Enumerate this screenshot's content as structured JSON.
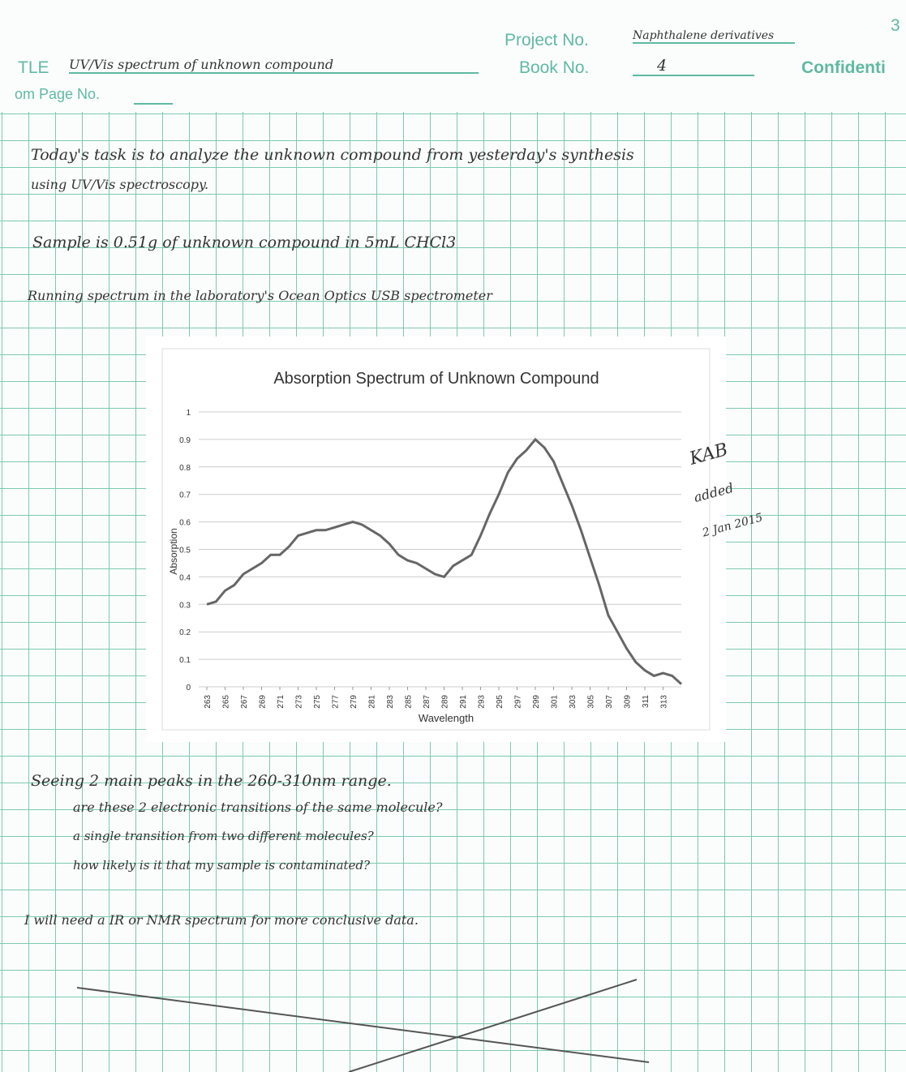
{
  "header": {
    "page_number": "3",
    "title_label": "TLE",
    "title": "UV/Vis spectrum of unknown compound",
    "project_label": "Project No.",
    "project": "Naphthalene derivatives",
    "book_label": "Book No.",
    "book": "4",
    "confidential": "Confidenti",
    "from_page_label": "om Page No."
  },
  "notes_top": [
    "Today's task is to analyze the unknown compound from yesterday's synthesis",
    "using UV/Vis spectroscopy.",
    "Sample is 0.51g of unknown compound in 5mL CHCl3",
    "Running spectrum in the laboratory's Ocean Optics USB spectrometer"
  ],
  "chart": {
    "type": "line",
    "title": "Absorption Spectrum of Unknown Compound",
    "x_label": "Wavelength",
    "y_label": "Absorption",
    "color": "#666666",
    "grid": true,
    "x": [
      263,
      264,
      265,
      266,
      267,
      268,
      269,
      270,
      271,
      272,
      273,
      274,
      275,
      276,
      277,
      278,
      279,
      280,
      281,
      282,
      283,
      284,
      285,
      286,
      287,
      288,
      289,
      290,
      291,
      292,
      293,
      294,
      295,
      296,
      297,
      298,
      299,
      300,
      301,
      302,
      303,
      304,
      305,
      306,
      307,
      308,
      309,
      310,
      311,
      312,
      313,
      314,
      315
    ],
    "values": [
      0.3,
      0.31,
      0.35,
      0.37,
      0.41,
      0.43,
      0.45,
      0.48,
      0.48,
      0.51,
      0.55,
      0.56,
      0.57,
      0.57,
      0.58,
      0.59,
      0.6,
      0.59,
      0.57,
      0.55,
      0.52,
      0.48,
      0.46,
      0.45,
      0.43,
      0.41,
      0.4,
      0.44,
      0.46,
      0.48,
      0.55,
      0.63,
      0.7,
      0.78,
      0.83,
      0.86,
      0.9,
      0.87,
      0.82,
      0.74,
      0.66,
      0.57,
      0.47,
      0.37,
      0.26,
      0.2,
      0.14,
      0.09,
      0.06,
      0.04,
      0.05,
      0.04,
      0.01
    ],
    "xlim": [
      263,
      315
    ],
    "xticks": [
      263,
      265,
      267,
      269,
      271,
      273,
      275,
      277,
      279,
      281,
      283,
      285,
      287,
      289,
      291,
      293,
      295,
      297,
      299,
      301,
      303,
      305,
      307,
      309,
      311,
      313
    ],
    "ylim": [
      0,
      1
    ],
    "yticks": [
      0,
      0.1,
      0.2,
      0.3,
      0.4,
      0.5,
      0.6,
      0.7,
      0.8,
      0.9,
      1
    ]
  },
  "annotation": [
    "KAB",
    "added",
    "2 Jan 2015"
  ],
  "notes_bottom": [
    "Seeing 2 main peaks in the 260-310nm range.",
    "are these 2 electronic transitions of the same molecule?",
    "a single transition from two different molecules?",
    "how likely is it that my sample is contaminated?",
    "I will need a IR or NMR spectrum for more conclusive data."
  ]
}
